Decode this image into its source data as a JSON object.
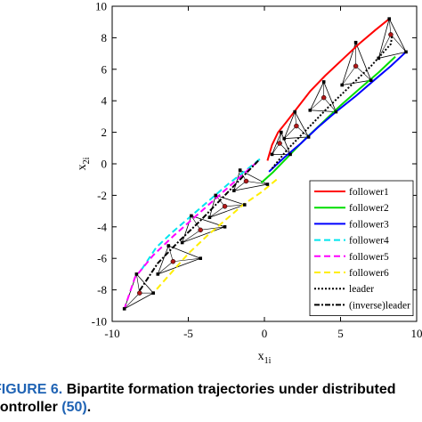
{
  "chart_data": {
    "type": "line",
    "xlabel": "x",
    "xlabel_sub": "1i",
    "ylabel": "x",
    "ylabel_sub": "2i",
    "xlim": [
      -10,
      10
    ],
    "ylim": [
      -10,
      10
    ],
    "xticks": [
      -10,
      -5,
      0,
      5,
      10
    ],
    "yticks": [
      -10,
      -8,
      -6,
      -4,
      -2,
      0,
      2,
      4,
      6,
      8,
      10
    ],
    "grid": false,
    "legend_position": "bottom-right",
    "series": [
      {
        "name": "follower1",
        "color": "#ff0000",
        "dash": "solid",
        "x": [
          0.2,
          0.5,
          0.9,
          1.4,
          2.2,
          3.0,
          4.0,
          5.1,
          6.2,
          7.3,
          8.2
        ],
        "y": [
          0.2,
          1.2,
          2.0,
          2.6,
          3.6,
          4.6,
          5.6,
          6.6,
          7.6,
          8.5,
          9.2
        ]
      },
      {
        "name": "follower2",
        "color": "#00dd00",
        "dash": "solid",
        "x": [
          -0.2,
          0.6,
          1.6,
          2.7,
          3.8,
          5.0,
          6.3,
          7.5,
          8.6
        ],
        "y": [
          -1.2,
          -0.5,
          0.5,
          1.6,
          2.6,
          3.7,
          4.8,
          5.8,
          6.8
        ]
      },
      {
        "name": "follower3",
        "color": "#0000ff",
        "dash": "solid",
        "x": [
          0.3,
          1.3,
          2.4,
          3.5,
          4.7,
          6.0,
          7.2,
          8.3,
          9.3
        ],
        "y": [
          -0.5,
          0.4,
          1.3,
          2.3,
          3.3,
          4.3,
          5.3,
          6.2,
          7.1
        ]
      },
      {
        "name": "follower4",
        "color": "#00e5ee",
        "dash": "dash",
        "x": [
          -0.3,
          -1.2,
          -2.4,
          -3.6,
          -4.8,
          -6.0,
          -7.1,
          -8.2
        ],
        "y": [
          0.3,
          -0.4,
          -1.3,
          -2.3,
          -3.3,
          -4.3,
          -5.3,
          -6.9
        ]
      },
      {
        "name": "follower5",
        "color": "#ff00ff",
        "dash": "dash",
        "x": [
          -0.5,
          -1.8,
          -3.2,
          -4.6,
          -6.0,
          -7.3,
          -8.5,
          -9.2
        ],
        "y": [
          0.1,
          -1.0,
          -2.2,
          -3.4,
          -4.6,
          -5.8,
          -7.2,
          -9.2
        ]
      },
      {
        "name": "follower6",
        "color": "#ffee00",
        "dash": "dash",
        "x": [
          0.8,
          -0.2,
          -1.4,
          -2.6,
          -3.8,
          -5.0,
          -6.2,
          -7.3
        ],
        "y": [
          -1.0,
          -1.8,
          -2.6,
          -3.6,
          -4.6,
          -5.7,
          -7.0,
          -8.2
        ]
      },
      {
        "name": "leader",
        "color": "#000000",
        "dash": "dot",
        "x": [
          0.5,
          1.5,
          2.8,
          4.2,
          5.6,
          7.0,
          8.3,
          8.4
        ],
        "y": [
          -0.3,
          0.9,
          2.2,
          3.6,
          4.9,
          6.2,
          7.6,
          8.2
        ]
      },
      {
        "name": "(inverse)leader",
        "color": "#000000",
        "dash": "dashdot",
        "x": [
          -0.4,
          -1.6,
          -2.9,
          -4.2,
          -5.6,
          -7.0,
          -8.3
        ],
        "y": [
          0.2,
          -1.0,
          -2.3,
          -3.6,
          -4.9,
          -6.3,
          -8.2
        ]
      }
    ],
    "legend": [
      {
        "label": "follower1",
        "color": "#ff0000",
        "dash": "solid"
      },
      {
        "label": "follower2",
        "color": "#00dd00",
        "dash": "solid"
      },
      {
        "label": "follower3",
        "color": "#0000ff",
        "dash": "solid"
      },
      {
        "label": "follower4",
        "color": "#00e5ee",
        "dash": "dash"
      },
      {
        "label": "follower5",
        "color": "#ff00ff",
        "dash": "dash"
      },
      {
        "label": "follower6",
        "color": "#ffee00",
        "dash": "dash"
      },
      {
        "label": "leader",
        "color": "#000000",
        "dash": "dot"
      },
      {
        "label": "(inverse)leader",
        "color": "#000000",
        "dash": "dashdot"
      }
    ],
    "formation_snapshots": [
      {
        "leader": [
          8.3,
          8.2
        ],
        "followers": [
          [
            8.2,
            9.2
          ],
          [
            7.5,
            6.7
          ],
          [
            9.3,
            7.1
          ]
        ]
      },
      {
        "leader": [
          6.0,
          6.2
        ],
        "followers": [
          [
            6.0,
            7.7
          ],
          [
            5.1,
            5.0
          ],
          [
            7.0,
            5.3
          ]
        ]
      },
      {
        "leader": [
          3.9,
          4.2
        ],
        "followers": [
          [
            3.9,
            5.2
          ],
          [
            3.0,
            3.4
          ],
          [
            4.7,
            3.3
          ]
        ]
      },
      {
        "leader": [
          2.1,
          2.4
        ],
        "followers": [
          [
            2.0,
            3.3
          ],
          [
            1.3,
            1.6
          ],
          [
            2.9,
            1.7
          ]
        ]
      },
      {
        "leader": [
          1.0,
          1.3
        ],
        "followers": [
          [
            1.1,
            2.0
          ],
          [
            0.5,
            0.6
          ],
          [
            1.7,
            0.6
          ]
        ]
      },
      {
        "leader": [
          -8.2,
          -8.2
        ],
        "followers": [
          [
            -8.4,
            -7.0
          ],
          [
            -9.2,
            -9.2
          ],
          [
            -7.3,
            -8.2
          ]
        ]
      },
      {
        "leader": [
          -6.0,
          -6.2
        ],
        "followers": [
          [
            -6.3,
            -5.2
          ],
          [
            -7.0,
            -7.0
          ],
          [
            -4.2,
            -6.0
          ]
        ]
      },
      {
        "leader": [
          -4.2,
          -4.2
        ],
        "followers": [
          [
            -4.8,
            -3.3
          ],
          [
            -5.4,
            -5.0
          ],
          [
            -2.6,
            -4.0
          ]
        ]
      },
      {
        "leader": [
          -2.6,
          -2.7
        ],
        "followers": [
          [
            -3.2,
            -2.0
          ],
          [
            -3.6,
            -3.4
          ],
          [
            -1.3,
            -2.6
          ]
        ]
      },
      {
        "leader": [
          -1.2,
          -1.1
        ],
        "followers": [
          [
            -1.6,
            -0.4
          ],
          [
            -2.0,
            -1.7
          ],
          [
            0.2,
            -1.3
          ]
        ]
      }
    ]
  },
  "caption": {
    "label": "FIGURE 6.",
    "text_line1": "Bipartite formation trajectories under distributed",
    "text_line2_prefix": "controller ",
    "reference": "(50)",
    "text_line2_suffix": "."
  }
}
